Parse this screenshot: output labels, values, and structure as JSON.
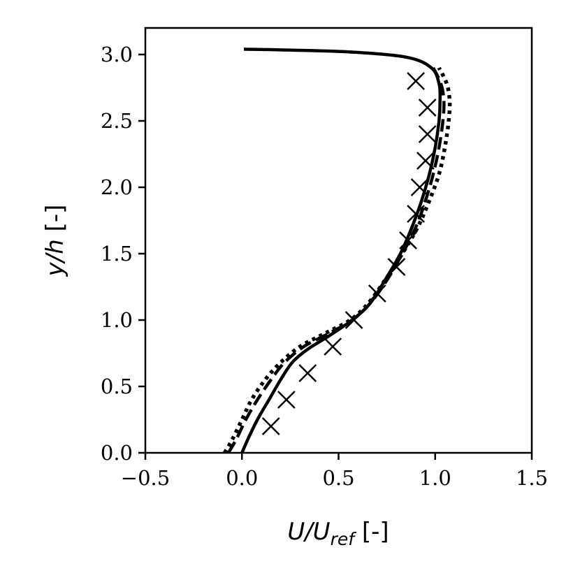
{
  "chart_data": {
    "type": "line",
    "title": "",
    "xlabel": {
      "base": "U/U",
      "sub": "ref",
      "suffix": " [-]"
    },
    "ylabel": {
      "italic": "y/h",
      "suffix": " [-]"
    },
    "xlim": [
      -0.5,
      1.5
    ],
    "ylim": [
      0.0,
      3.2
    ],
    "xticks": [
      -0.5,
      0.0,
      0.5,
      1.0,
      1.5
    ],
    "yticks": [
      0.0,
      0.5,
      1.0,
      1.5,
      2.0,
      2.5,
      3.0
    ],
    "xtick_labels": [
      "−0.5",
      "0.0",
      "0.5",
      "1.0",
      "1.5"
    ],
    "ytick_labels": [
      "0.0",
      "0.5",
      "1.0",
      "1.5",
      "2.0",
      "2.5",
      "3.0"
    ],
    "grid": false,
    "legend": "none",
    "series": [
      {
        "style": "solid",
        "points": [
          [
            0.0,
            0.0
          ],
          [
            0.03,
            0.1
          ],
          [
            0.08,
            0.25
          ],
          [
            0.14,
            0.4
          ],
          [
            0.2,
            0.55
          ],
          [
            0.26,
            0.68
          ],
          [
            0.34,
            0.78
          ],
          [
            0.45,
            0.88
          ],
          [
            0.57,
            1.0
          ],
          [
            0.66,
            1.12
          ],
          [
            0.74,
            1.3
          ],
          [
            0.82,
            1.5
          ],
          [
            0.88,
            1.7
          ],
          [
            0.93,
            1.9
          ],
          [
            0.97,
            2.1
          ],
          [
            1.0,
            2.3
          ],
          [
            1.02,
            2.5
          ],
          [
            1.025,
            2.65
          ],
          [
            1.02,
            2.78
          ],
          [
            0.98,
            2.9
          ],
          [
            0.85,
            2.98
          ],
          [
            0.55,
            3.02
          ],
          [
            0.2,
            3.035
          ],
          [
            0.01,
            3.04
          ]
        ]
      },
      {
        "style": "dashed",
        "points": [
          [
            -0.07,
            0.0
          ],
          [
            -0.03,
            0.1
          ],
          [
            0.02,
            0.25
          ],
          [
            0.08,
            0.4
          ],
          [
            0.15,
            0.55
          ],
          [
            0.22,
            0.68
          ],
          [
            0.32,
            0.8
          ],
          [
            0.45,
            0.9
          ],
          [
            0.57,
            1.0
          ],
          [
            0.66,
            1.12
          ],
          [
            0.75,
            1.3
          ],
          [
            0.83,
            1.5
          ],
          [
            0.9,
            1.7
          ],
          [
            0.95,
            1.9
          ],
          [
            0.99,
            2.1
          ],
          [
            1.02,
            2.3
          ],
          [
            1.04,
            2.5
          ],
          [
            1.045,
            2.65
          ],
          [
            1.03,
            2.78
          ],
          [
            0.99,
            2.9
          ]
        ]
      },
      {
        "style": "dotted",
        "points": [
          [
            -0.09,
            0.0
          ],
          [
            -0.05,
            0.1
          ],
          [
            0.0,
            0.25
          ],
          [
            0.05,
            0.4
          ],
          [
            0.12,
            0.55
          ],
          [
            0.2,
            0.68
          ],
          [
            0.3,
            0.8
          ],
          [
            0.43,
            0.9
          ],
          [
            0.56,
            1.0
          ],
          [
            0.65,
            1.12
          ],
          [
            0.74,
            1.3
          ],
          [
            0.83,
            1.5
          ],
          [
            0.91,
            1.7
          ],
          [
            0.97,
            1.9
          ],
          [
            1.02,
            2.1
          ],
          [
            1.05,
            2.3
          ],
          [
            1.07,
            2.5
          ],
          [
            1.075,
            2.65
          ],
          [
            1.06,
            2.78
          ],
          [
            1.02,
            2.9
          ]
        ]
      },
      {
        "style": "markers-x",
        "points": [
          [
            0.15,
            0.2
          ],
          [
            0.23,
            0.4
          ],
          [
            0.34,
            0.6
          ],
          [
            0.47,
            0.8
          ],
          [
            0.58,
            1.0
          ],
          [
            0.7,
            1.2
          ],
          [
            0.8,
            1.4
          ],
          [
            0.86,
            1.6
          ],
          [
            0.9,
            1.8
          ],
          [
            0.92,
            2.0
          ],
          [
            0.95,
            2.2
          ],
          [
            0.96,
            2.4
          ],
          [
            0.96,
            2.6
          ],
          [
            0.9,
            2.8
          ]
        ]
      }
    ]
  }
}
